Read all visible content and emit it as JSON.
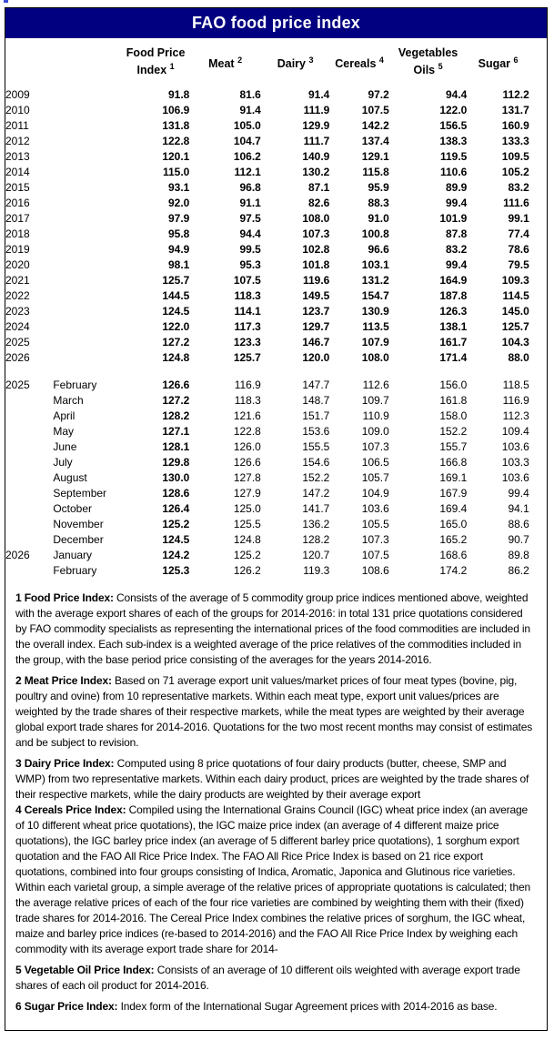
{
  "title": "FAO food price index",
  "colors": {
    "header_bg": "#000080",
    "header_text": "#ffffff",
    "border": "#000000"
  },
  "table": {
    "columns": [
      {
        "line1": "Food Price",
        "line2": "Index",
        "sup": "1"
      },
      {
        "line1": "Meat",
        "line2": "",
        "sup": "2"
      },
      {
        "line1": "Dairy",
        "line2": "",
        "sup": "3"
      },
      {
        "line1": "Cereals",
        "line2": "",
        "sup": "4"
      },
      {
        "line1": "Vegetables",
        "line2": "Oils",
        "sup": "5"
      },
      {
        "line1": "Sugar",
        "line2": "",
        "sup": "6"
      }
    ],
    "yearly_rows": [
      {
        "year": "2009",
        "values": [
          "91.8",
          "81.6",
          "91.4",
          "97.2",
          "94.4",
          "112.2"
        ]
      },
      {
        "year": "2010",
        "values": [
          "106.9",
          "91.4",
          "111.9",
          "107.5",
          "122.0",
          "131.7"
        ]
      },
      {
        "year": "2011",
        "values": [
          "131.8",
          "105.0",
          "129.9",
          "142.2",
          "156.5",
          "160.9"
        ]
      },
      {
        "year": "2012",
        "values": [
          "122.8",
          "104.7",
          "111.7",
          "137.4",
          "138.3",
          "133.3"
        ]
      },
      {
        "year": "2013",
        "values": [
          "120.1",
          "106.2",
          "140.9",
          "129.1",
          "119.5",
          "109.5"
        ]
      },
      {
        "year": "2014",
        "values": [
          "115.0",
          "112.1",
          "130.2",
          "115.8",
          "110.6",
          "105.2"
        ]
      },
      {
        "year": "2015",
        "values": [
          "93.1",
          "96.8",
          "87.1",
          "95.9",
          "89.9",
          "83.2"
        ]
      },
      {
        "year": "2016",
        "values": [
          "92.0",
          "91.1",
          "82.6",
          "88.3",
          "99.4",
          "111.6"
        ]
      },
      {
        "year": "2017",
        "values": [
          "97.9",
          "97.5",
          "108.0",
          "91.0",
          "101.9",
          "99.1"
        ]
      },
      {
        "year": "2018",
        "values": [
          "95.8",
          "94.4",
          "107.3",
          "100.8",
          "87.8",
          "77.4"
        ]
      },
      {
        "year": "2019",
        "values": [
          "94.9",
          "99.5",
          "102.8",
          "96.6",
          "83.2",
          "78.6"
        ]
      },
      {
        "year": "2020",
        "values": [
          "98.1",
          "95.3",
          "101.8",
          "103.1",
          "99.4",
          "79.5"
        ]
      },
      {
        "year": "2021",
        "values": [
          "125.7",
          "107.5",
          "119.6",
          "131.2",
          "164.9",
          "109.3"
        ]
      },
      {
        "year": "2022",
        "values": [
          "144.5",
          "118.3",
          "149.5",
          "154.7",
          "187.8",
          "114.5"
        ]
      },
      {
        "year": "2023",
        "values": [
          "124.5",
          "114.1",
          "123.7",
          "130.9",
          "126.3",
          "145.0"
        ]
      },
      {
        "year": "2024",
        "values": [
          "122.0",
          "117.3",
          "129.7",
          "113.5",
          "138.1",
          "125.7"
        ]
      },
      {
        "year": "2025",
        "values": [
          "127.2",
          "123.3",
          "146.7",
          "107.9",
          "161.7",
          "104.3"
        ]
      },
      {
        "year": "2026",
        "values": [
          "124.8",
          "125.7",
          "120.0",
          "108.0",
          "171.4",
          "88.0"
        ]
      }
    ],
    "monthly_rows": [
      {
        "year": "2025",
        "month": "February",
        "values": [
          "126.6",
          "116.9",
          "147.7",
          "112.6",
          "156.0",
          "118.5"
        ]
      },
      {
        "year": "",
        "month": "March",
        "values": [
          "127.2",
          "118.3",
          "148.7",
          "109.7",
          "161.8",
          "116.9"
        ]
      },
      {
        "year": "",
        "month": "April",
        "values": [
          "128.2",
          "121.6",
          "151.7",
          "110.9",
          "158.0",
          "112.3"
        ]
      },
      {
        "year": "",
        "month": "May",
        "values": [
          "127.1",
          "122.8",
          "153.6",
          "109.0",
          "152.2",
          "109.4"
        ]
      },
      {
        "year": "",
        "month": "June",
        "values": [
          "128.1",
          "126.0",
          "155.5",
          "107.3",
          "155.7",
          "103.6"
        ]
      },
      {
        "year": "",
        "month": "July",
        "values": [
          "129.8",
          "126.6",
          "154.6",
          "106.5",
          "166.8",
          "103.3"
        ]
      },
      {
        "year": "",
        "month": "August",
        "values": [
          "130.0",
          "127.8",
          "152.2",
          "105.7",
          "169.1",
          "103.6"
        ]
      },
      {
        "year": "",
        "month": "September",
        "values": [
          "128.6",
          "127.9",
          "147.2",
          "104.9",
          "167.9",
          "99.4"
        ]
      },
      {
        "year": "",
        "month": "October",
        "values": [
          "126.4",
          "125.0",
          "141.7",
          "103.6",
          "169.4",
          "94.1"
        ]
      },
      {
        "year": "",
        "month": "November",
        "values": [
          "125.2",
          "125.5",
          "136.2",
          "105.5",
          "165.0",
          "88.6"
        ]
      },
      {
        "year": "",
        "month": "December",
        "values": [
          "124.5",
          "124.8",
          "128.2",
          "107.3",
          "165.2",
          "90.7"
        ]
      },
      {
        "year": "2026",
        "month": "January",
        "values": [
          "124.2",
          "125.2",
          "120.7",
          "107.5",
          "168.6",
          "89.8"
        ]
      },
      {
        "year": "",
        "month": "February",
        "values": [
          "125.3",
          "126.2",
          "119.3",
          "108.6",
          "174.2",
          "86.2"
        ]
      }
    ]
  },
  "footnotes": [
    {
      "lead": "1 Food Price Index:",
      "text": "Consists of the average of 5 commodity group price indices mentioned above, weighted with the average export shares of each of the groups for 2014-2016: in total 131 price quotations considered by FAO commodity specialists as representing the international prices of the food commodities are included in the overall index. Each sub-index is a weighted average of the price relatives of the commodities included in the group, with the base period price consisting of the averages for the years 2014-2016.",
      "gap_before": false
    },
    {
      "lead": "2 Meat Price Index:",
      "text": "Based on 71 average export unit values/market prices of four meat types (bovine, pig, poultry and ovine) from 10 representative markets. Within each meat type, export unit values/prices are weighted by the trade shares of their respective markets, while the meat types are weighted by their average global export trade shares for 2014-2016. Quotations for the two most recent months may consist of estimates and be subject to revision.",
      "gap_before": true
    },
    {
      "lead": "3 Dairy Price Index:",
      "text": "Computed using 8 price quotations of four dairy products (butter, cheese, SMP and WMP) from two representative markets. Within each dairy product, prices are weighted by the trade shares of their respective markets, while the dairy products are weighted by their average export",
      "gap_before": true
    },
    {
      "lead": "4 Cereals Price Index:",
      "text": "Compiled using the International Grains Council (IGC) wheat price index (an average of 10 different wheat price quotations), the IGC maize price index (an average of 4 different maize price quotations), the IGC barley price index (an average of 5 different barley price quotations), 1 sorghum export quotation and the FAO All Rice Price Index. The FAO All Rice Price Index is based on 21 rice export quotations, combined into four groups consisting of Indica, Aromatic, Japonica and Glutinous rice varieties. Within each varietal group, a simple average of the relative prices of appropriate quotations is calculated; then the average relative prices of each of the four rice varieties are combined by weighting them with their (fixed) trade shares for 2014-2016. The Cereal Price Index combines the relative prices of sorghum, the IGC wheat, maize and barley price indices (re-based to 2014-2016) and the FAO All Rice Price Index by weighing each commodity with its average export trade share for 2014-",
      "gap_before": false
    },
    {
      "lead": "5 Vegetable Oil Price Index:",
      "text": "Consists of an average of 10 different oils weighted with average export trade shares of each oil product for 2014-2016.",
      "gap_before": true
    },
    {
      "lead": "6 Sugar Price Index:",
      "text": "Index form of the International Sugar Agreement prices with 2014-2016 as base.",
      "gap_before": true
    }
  ]
}
